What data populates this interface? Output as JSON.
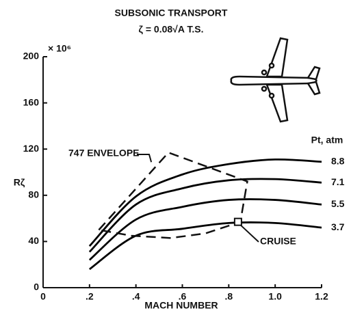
{
  "chart_data": {
    "type": "line",
    "title": "SUBSONIC TRANSPORT",
    "subtitle": "ζ = 0.08√A T.S.",
    "x_label": "MACH NUMBER",
    "y_label": "Rζ",
    "y_unit": "× 10⁶",
    "legend_title": "Pt, atm",
    "x": [
      0.2,
      0.4,
      0.6,
      0.8,
      1.0,
      1.2
    ],
    "series": [
      {
        "name": "8.8",
        "color": "#000000",
        "values": [
          36,
          79,
          98,
          107,
          111,
          109
        ]
      },
      {
        "name": "7.1",
        "color": "#000000",
        "values": [
          31,
          72,
          86,
          93,
          94,
          91
        ]
      },
      {
        "name": "5.5",
        "color": "#000000",
        "values": [
          24,
          59,
          70,
          76,
          76,
          72
        ]
      },
      {
        "name": "3.7",
        "color": "#000000",
        "values": [
          16,
          45,
          51,
          56,
          56,
          52
        ]
      }
    ],
    "envelope": {
      "name": "747 ENVELOPE",
      "x": [
        0.24,
        0.54,
        0.88,
        0.85,
        0.7,
        0.55,
        0.38,
        0.24
      ],
      "values": [
        50,
        117,
        92,
        57,
        47,
        43,
        45,
        50
      ]
    },
    "cruise": {
      "name": "CRUISE",
      "x": 0.84,
      "value": 57
    },
    "xlim": [
      0,
      1.2
    ],
    "ylim": [
      0,
      200
    ],
    "xticks": [
      0,
      {
        "value": 0.2,
        "label": ".2"
      },
      {
        "value": 0.4,
        "label": ".4"
      },
      {
        "value": 0.6,
        "label": ".6"
      },
      {
        "value": 0.8,
        "label": ".8"
      },
      {
        "value": 1.0,
        "label": "1.0"
      },
      1.2
    ],
    "yticks": [
      0,
      40,
      80,
      120,
      160,
      200
    ],
    "grid": false
  }
}
